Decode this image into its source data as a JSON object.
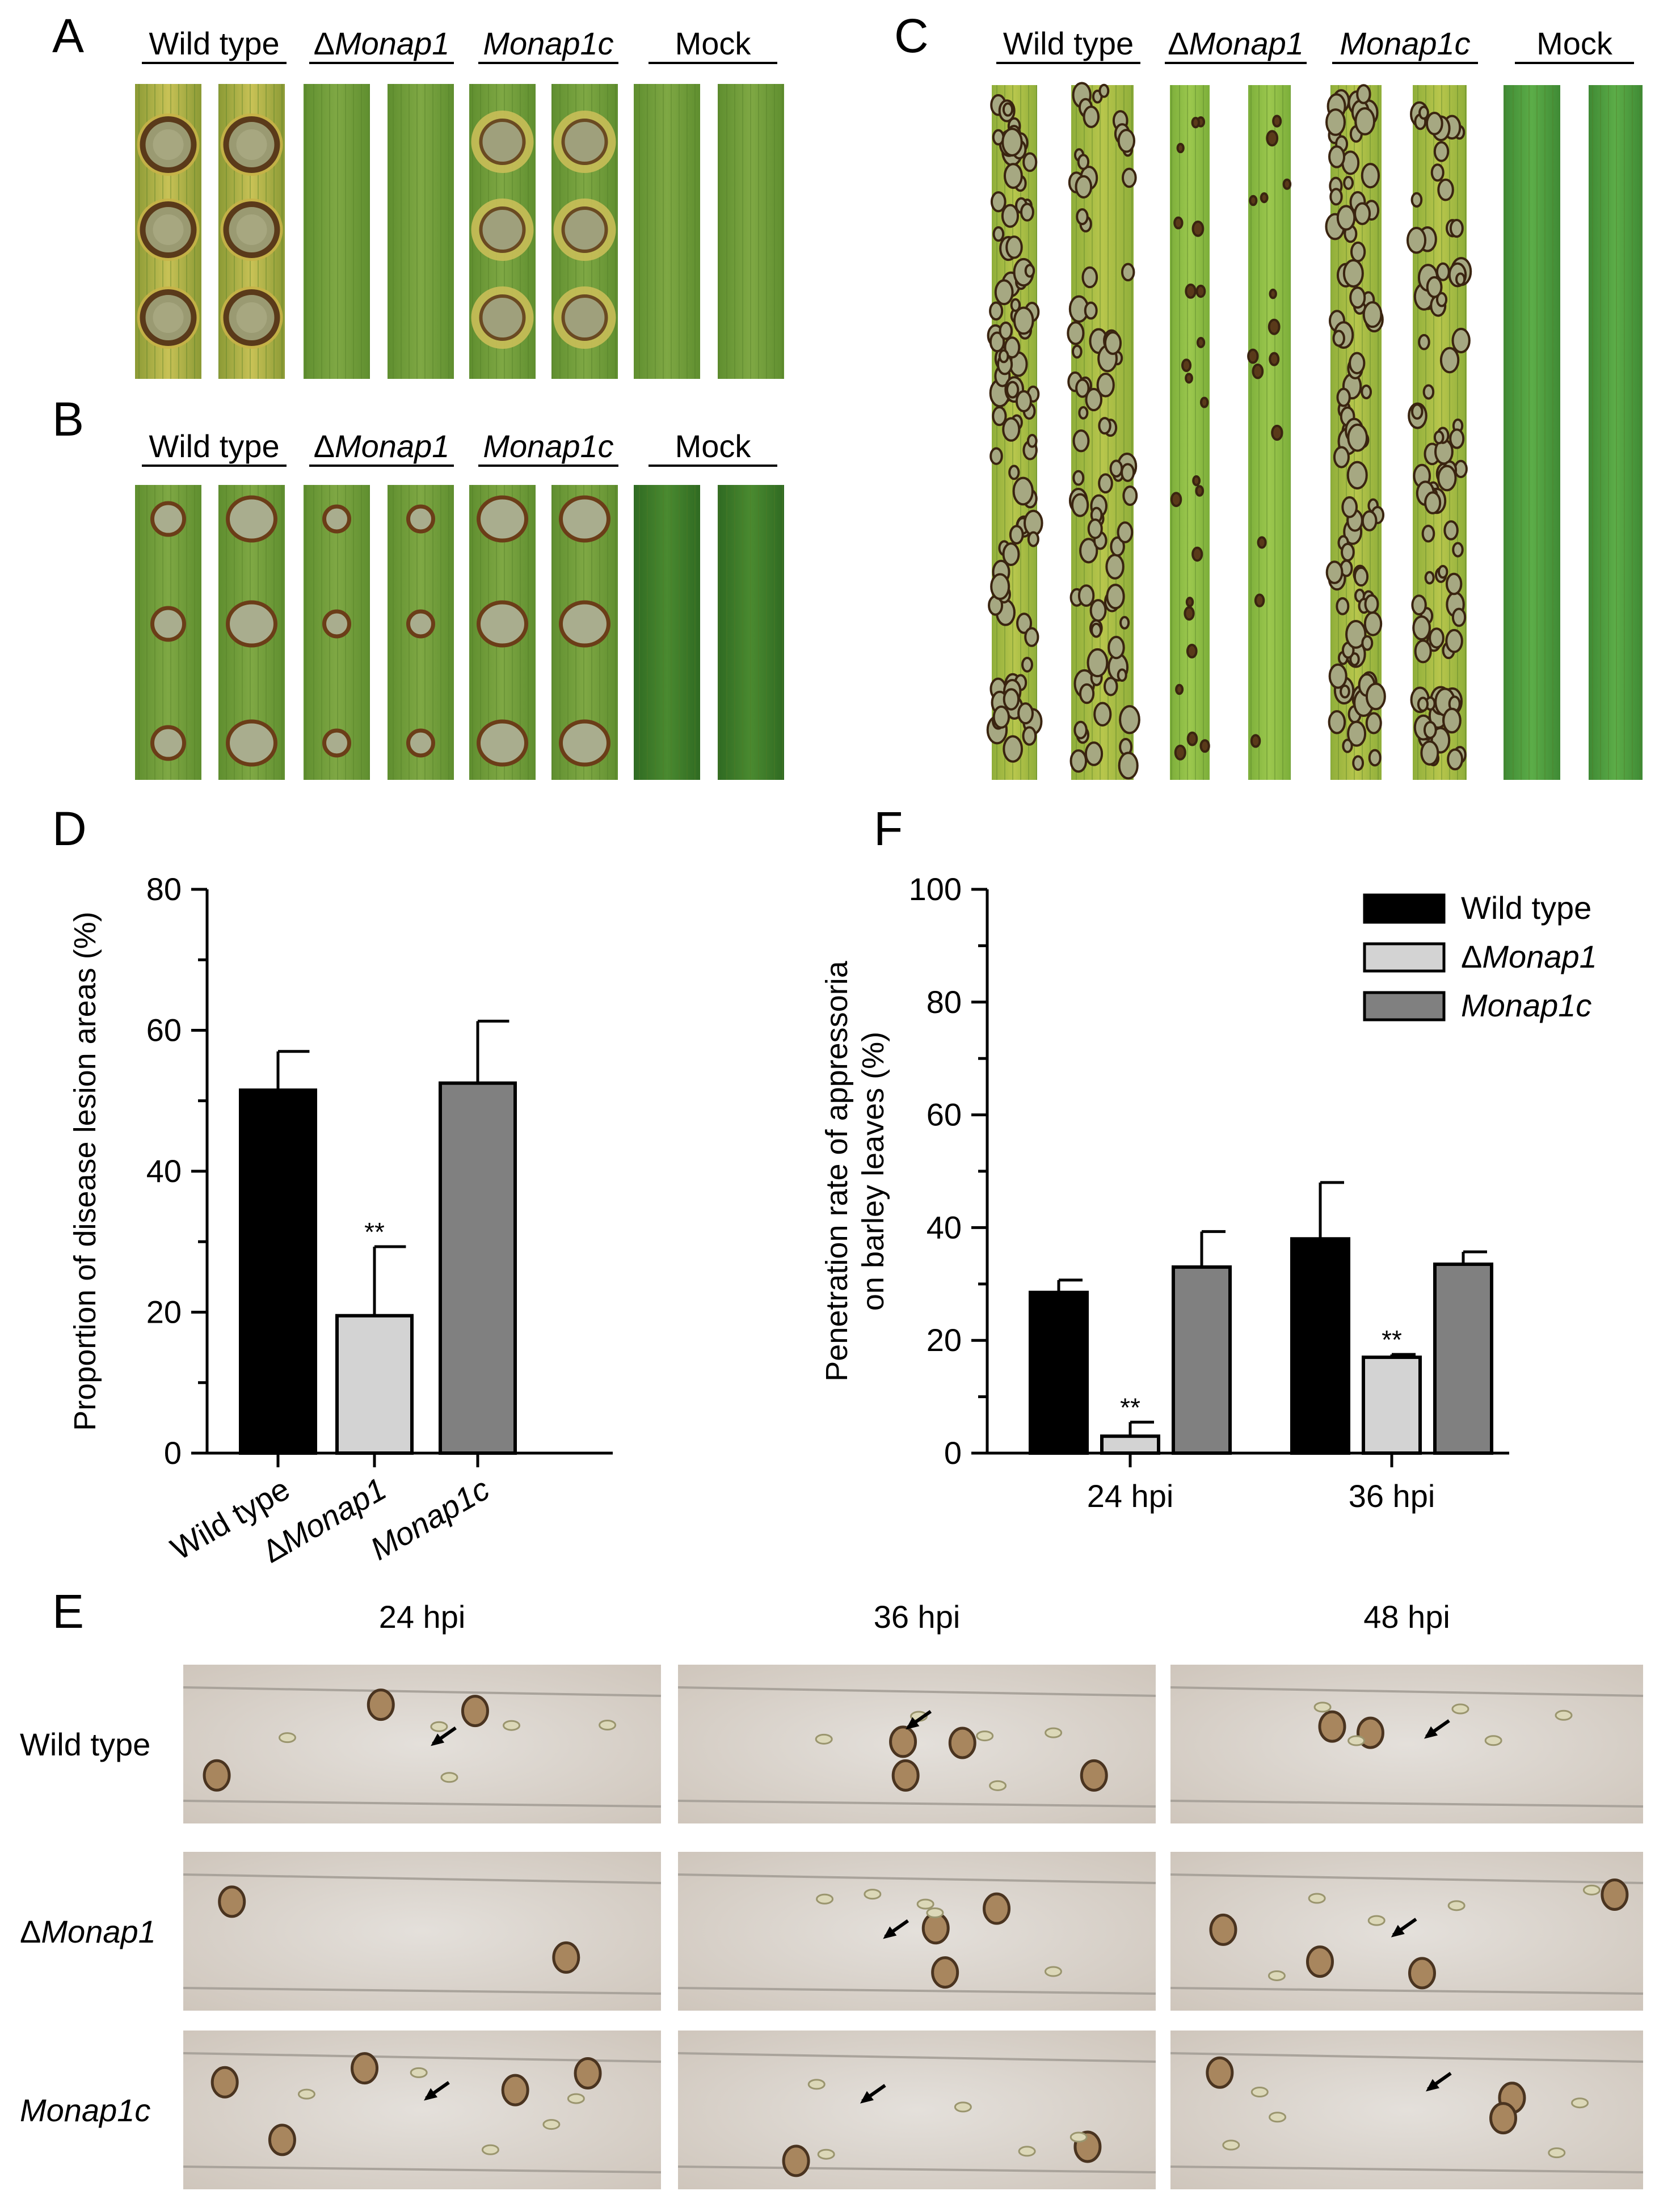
{
  "panel_letters": {
    "a": "A",
    "b": "B",
    "c": "C",
    "d": "D",
    "e": "E",
    "f": "F"
  },
  "leaf_headers": {
    "wt": "Wild type",
    "delta_sym": "Δ",
    "mutant": "Monap1",
    "comp": "Monap1c",
    "mock": "Mock"
  },
  "micro": {
    "cols": [
      "24 hpi",
      "36 hpi",
      "48 hpi"
    ],
    "rows": [
      {
        "prefix": "",
        "label": "Wild type",
        "italic": false
      },
      {
        "prefix": "Δ",
        "label": "Monap1",
        "italic": true
      },
      {
        "prefix": "",
        "label": "Monap1c",
        "italic": true
      }
    ]
  },
  "colors": {
    "wild_type": "#000000",
    "mutant": "#d3d3d3",
    "complement": "#808080",
    "leaf_green": "#6f9a36",
    "lesion_yellow": "#b8b04a",
    "micro_bg": "#d9d4cf"
  },
  "chart_data": [
    {
      "id": "D",
      "type": "bar",
      "ylabel": "Proportion of disease lesion areas (%)",
      "ylim": [
        0,
        80
      ],
      "yticks": [
        0,
        20,
        40,
        60,
        80
      ],
      "categories": [
        "Wild type",
        "ΔMonap1",
        "Monap1c"
      ],
      "category_parts": [
        {
          "pre": "",
          "it": "",
          "txt": "Wild type"
        },
        {
          "pre": "Δ",
          "it": "Monap1",
          "txt": ""
        },
        {
          "pre": "",
          "it": "Monap1c",
          "txt": ""
        }
      ],
      "values": [
        51.5,
        19.5,
        52.5
      ],
      "errors": [
        5.5,
        9.8,
        8.8
      ],
      "significance": [
        "",
        "**",
        ""
      ]
    },
    {
      "id": "F",
      "type": "bar",
      "ylabel": "Penetration rate of appressoria on barley leaves (%)",
      "ylabel_lines": [
        "Penetration rate of appressoria",
        "on barley leaves (%)"
      ],
      "ylim": [
        0,
        100
      ],
      "yticks": [
        0,
        20,
        40,
        60,
        80,
        100
      ],
      "categories": [
        "24 hpi",
        "36 hpi"
      ],
      "series": [
        {
          "name": "Wild type",
          "values": [
            28.5,
            38
          ],
          "errors": [
            2.2,
            10
          ]
        },
        {
          "name": "ΔMonap1",
          "values": [
            3,
            17
          ],
          "errors": [
            2.5,
            0.5
          ]
        },
        {
          "name": "Monap1c",
          "values": [
            33,
            33.5
          ],
          "errors": [
            6.3,
            2.2
          ]
        }
      ],
      "legend": [
        {
          "pre": "",
          "it": "",
          "txt": "Wild type"
        },
        {
          "pre": "Δ",
          "it": "Monap1",
          "txt": ""
        },
        {
          "pre": "",
          "it": "Monap1c",
          "txt": ""
        }
      ],
      "significance": [
        [
          "",
          "**",
          ""
        ],
        [
          "",
          "**",
          ""
        ]
      ],
      "legend_position": "top-right"
    }
  ]
}
